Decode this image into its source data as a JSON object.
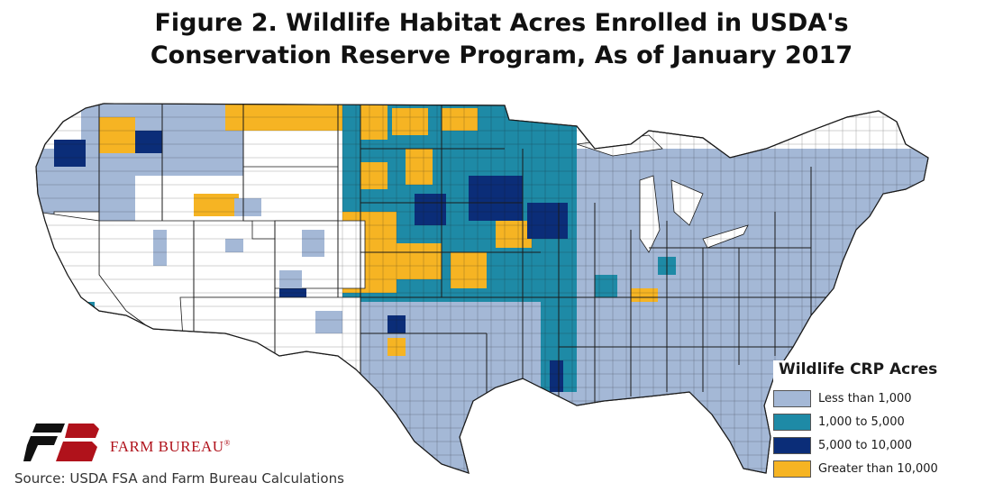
{
  "title": {
    "line1": "Figure 2. Wildlife Habitat Acres Enrolled in USDA's",
    "line2": "Conservation Reserve Program, As of January 2017"
  },
  "legend": {
    "title": "Wildlife CRP Acres",
    "items": [
      {
        "label": "Less than 1,000",
        "color": "#a4b8d6"
      },
      {
        "label": "1,000 to 5,000",
        "color": "#1e8aa6"
      },
      {
        "label": "5,000 to 10,000",
        "color": "#0b2d78"
      },
      {
        "label": "Greater than 10,000",
        "color": "#f6b423"
      }
    ]
  },
  "logo": {
    "text": "FARM BUREAU",
    "mark": "®",
    "color": "#b0121b"
  },
  "source": "Source: USDA FSA and Farm Bureau Calculations",
  "map": {
    "boundary_color": "#1a1a1a",
    "no_data_color": "#ffffff"
  }
}
